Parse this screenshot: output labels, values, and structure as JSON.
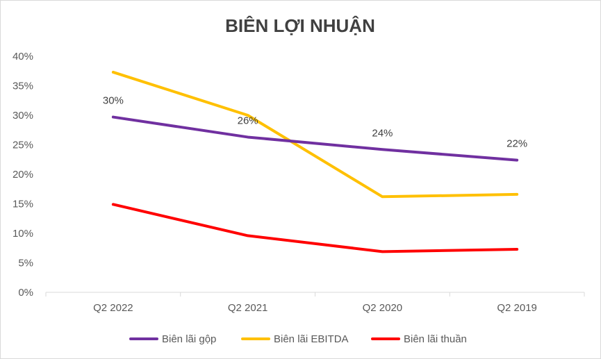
{
  "chart_data": {
    "type": "line",
    "title": "BIÊN LỢI NHUẬN",
    "categories": [
      "Q2 2022",
      "Q2 2021",
      "Q2 2020",
      "Q2 2019"
    ],
    "ylim": [
      0,
      40
    ],
    "yticks": [
      0,
      5,
      10,
      15,
      20,
      25,
      30,
      35,
      40
    ],
    "ytick_labels": [
      "0%",
      "5%",
      "10%",
      "15%",
      "20%",
      "25%",
      "30%",
      "35%",
      "40%"
    ],
    "grid": false,
    "legend_position": "bottom",
    "series": [
      {
        "name": "Biên lãi gộp",
        "color": "#7030a0",
        "values": [
          29.7,
          26.3,
          24.2,
          22.4
        ],
        "labels": [
          "30%",
          "26%",
          "24%",
          "22%"
        ]
      },
      {
        "name": "Biên lãi EBITDA",
        "color": "#ffc000",
        "values": [
          37.3,
          30.0,
          16.2,
          16.6
        ]
      },
      {
        "name": "Biên lãi thuần",
        "color": "#ff0000",
        "values": [
          14.9,
          9.6,
          6.9,
          7.3
        ]
      }
    ]
  }
}
